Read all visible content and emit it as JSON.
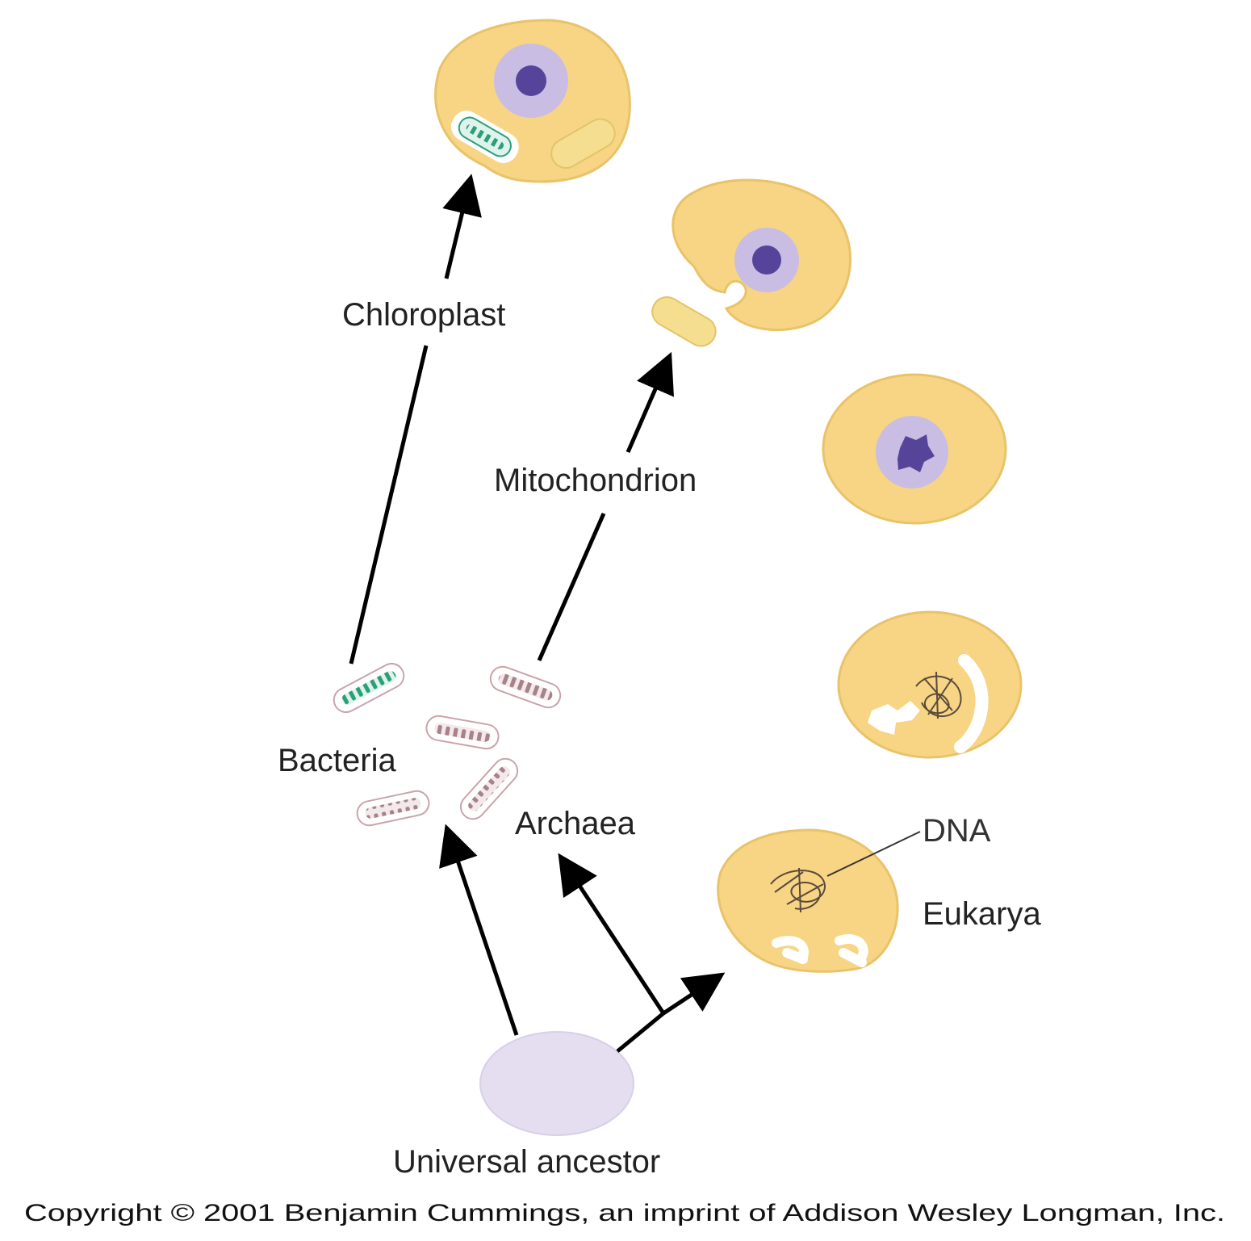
{
  "labels": {
    "chloroplast": "Chloroplast",
    "mitochondrion": "Mitochondrion",
    "bacteria": "Bacteria",
    "archaea": "Archaea",
    "dna": "DNA",
    "eukarya": "Eukarya",
    "universal_ancestor": "Universal ancestor"
  },
  "copyright": "Copyright © 2001 Benjamin Cummings, an imprint of Addison Wesley Longman, Inc.",
  "colors": {
    "cell_fill": "#f7d584",
    "cell_stroke": "#e9c36a",
    "nucleus_outer": "#c9bde3",
    "nucleus_inner": "#55449a",
    "ancestor_fill": "#e4def0",
    "bacteria_stripe": "#a6828a",
    "chloroplast_bacterium": "#2aa07a",
    "organelle_yellow": "#f5de8f",
    "arrow": "#000000"
  }
}
